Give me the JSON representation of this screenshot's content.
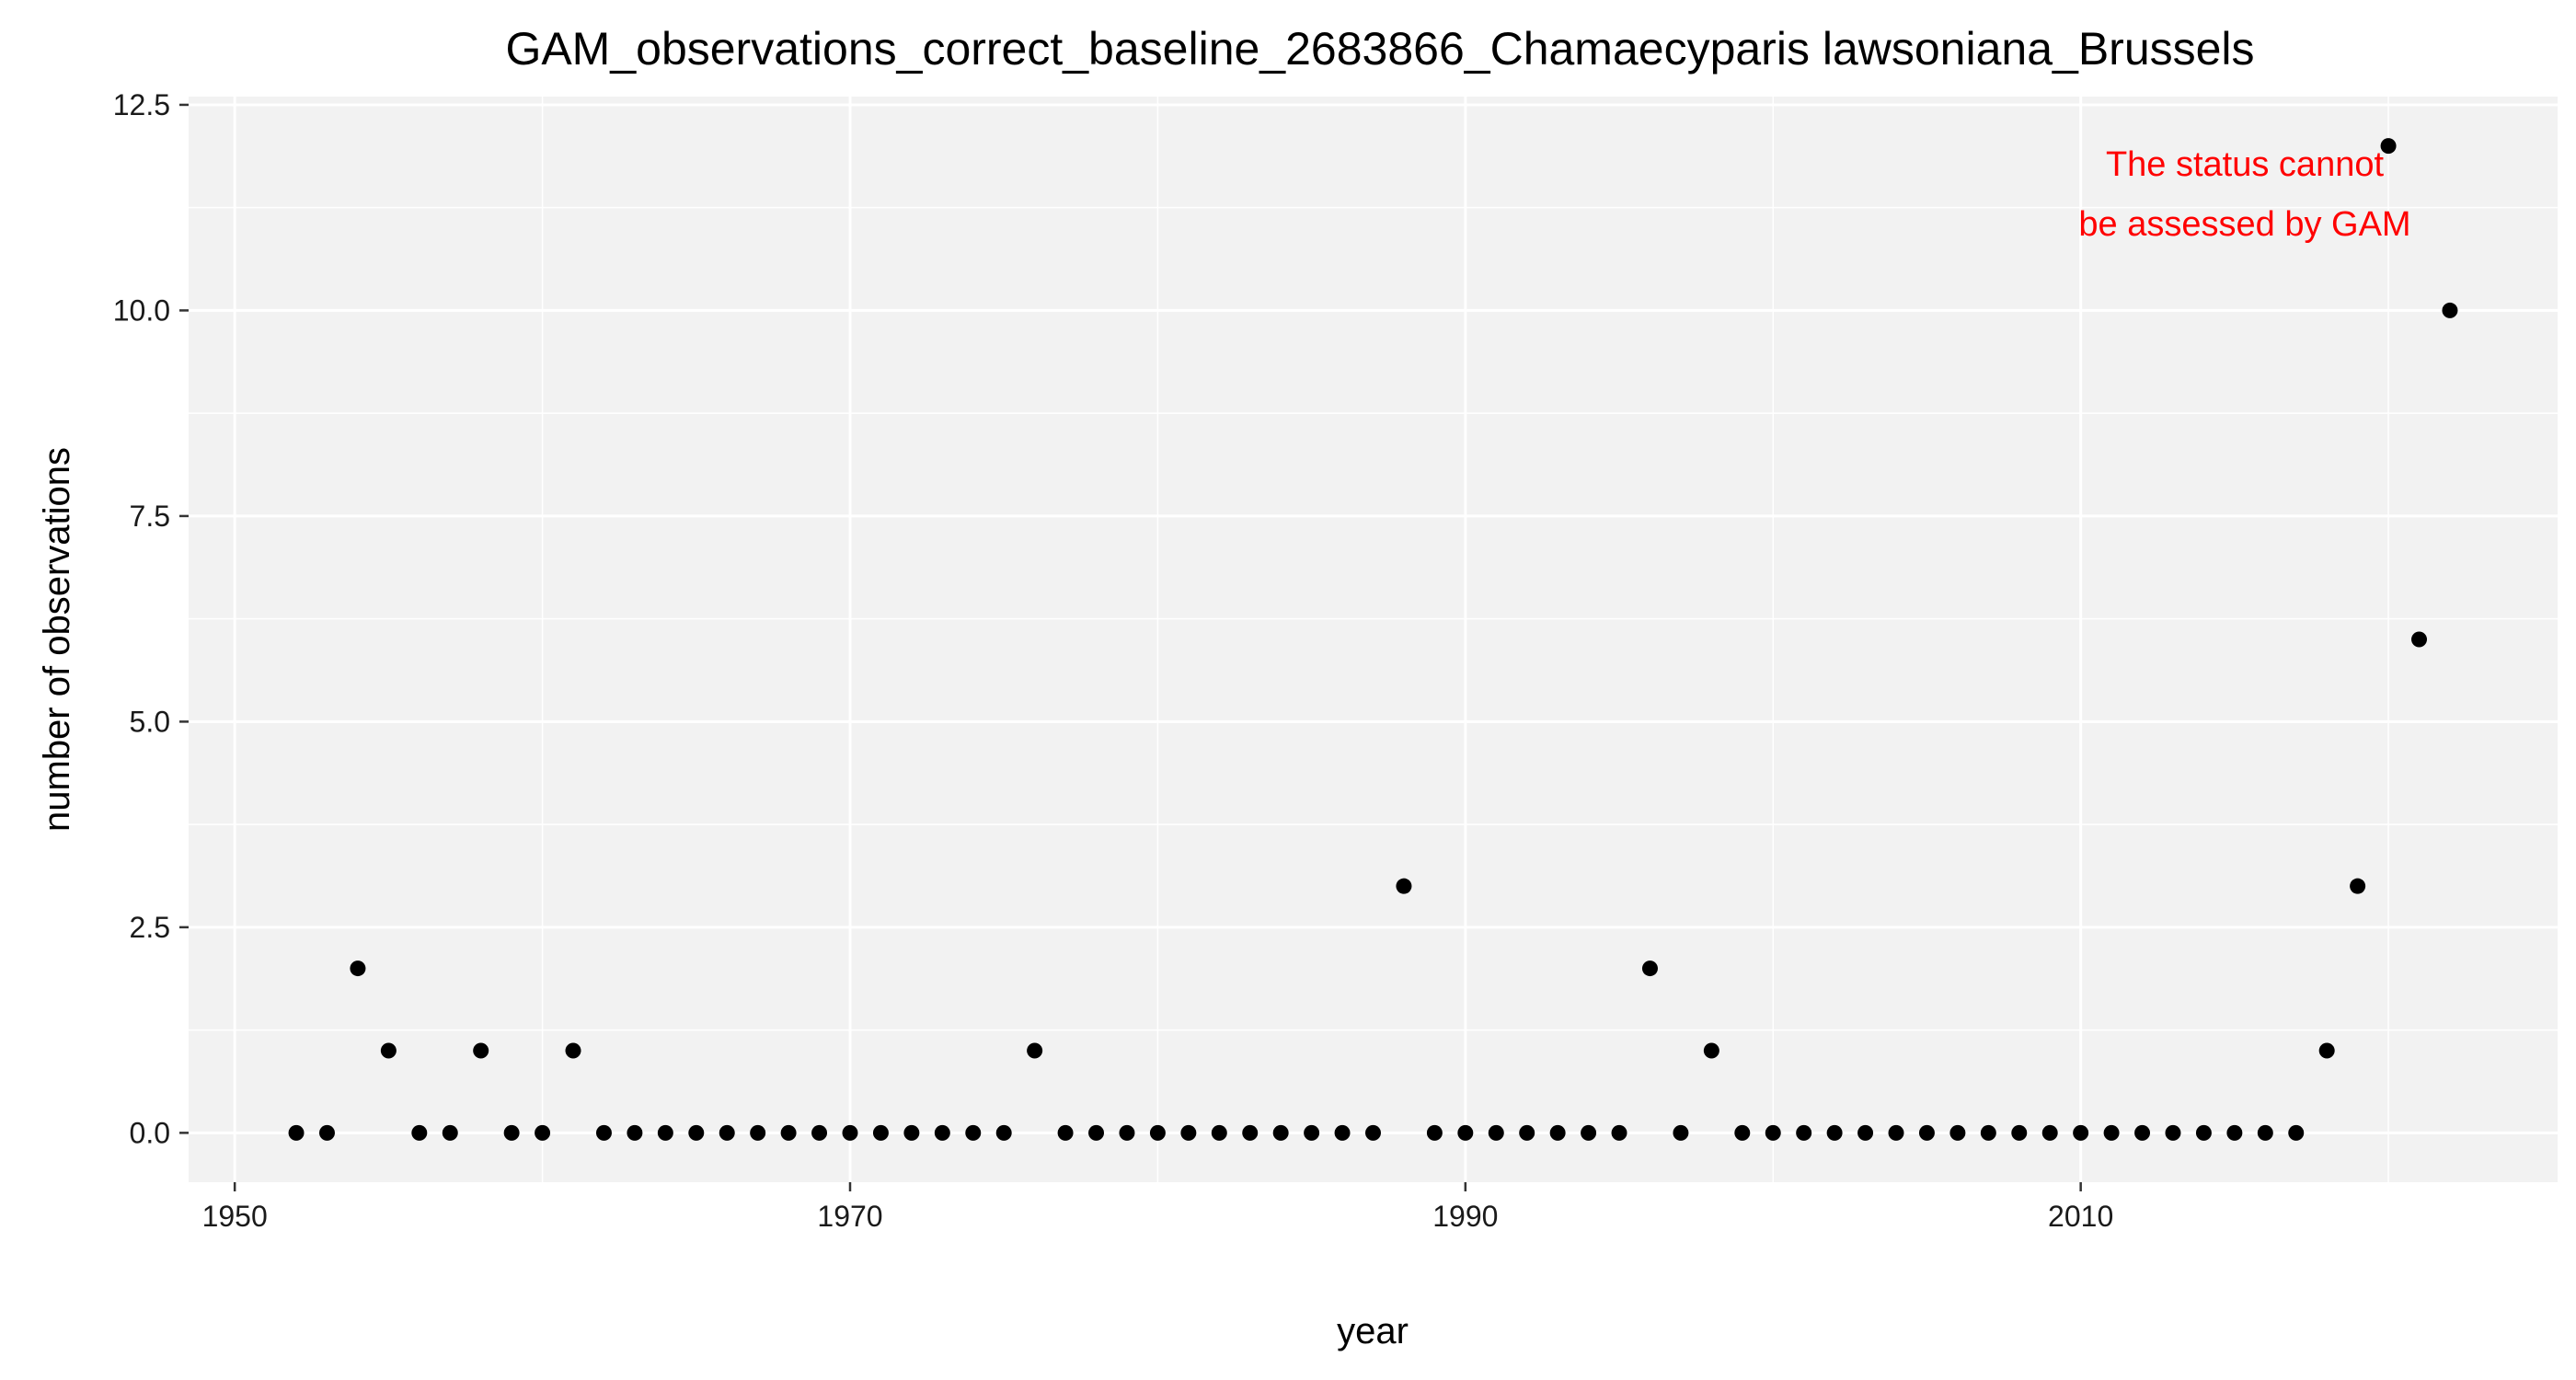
{
  "chart_data": {
    "type": "scatter",
    "title": "GAM_observations_correct_baseline_2683866_Chamaecyparis lawsoniana_Brussels",
    "xlabel": "year",
    "ylabel": "number of observations",
    "xlim": [
      1948.5,
      2025.5
    ],
    "ylim": [
      -0.6,
      12.6
    ],
    "x_ticks": [
      1950,
      1970,
      1990,
      2010
    ],
    "x_tick_labels": [
      "1950",
      "1970",
      "1990",
      "2010"
    ],
    "y_ticks": [
      0,
      2.5,
      5,
      7.5,
      10,
      12.5
    ],
    "y_tick_labels": [
      "0.0",
      "2.5",
      "5.0",
      "7.5",
      "10.0",
      "12.5"
    ],
    "annotation": [
      "The status cannot",
      "be assessed by GAM"
    ],
    "colors": {
      "panel": "#f2f2f2",
      "grid": "#ffffff",
      "point": "#000000",
      "annotation": "#ff0000",
      "text": "#000000",
      "tick_label": "#1a1a1a"
    },
    "series": [
      {
        "x": [
          1952,
          1953,
          1954,
          1955,
          1956,
          1957,
          1958,
          1959,
          1960,
          1961,
          1962,
          1963,
          1964,
          1965,
          1966,
          1967,
          1968,
          1969,
          1970,
          1971,
          1972,
          1973,
          1974,
          1975,
          1976,
          1977,
          1978,
          1979,
          1980,
          1981,
          1982,
          1983,
          1984,
          1985,
          1986,
          1987,
          1988,
          1989,
          1990,
          1991,
          1992,
          1993,
          1994,
          1995,
          1996,
          1997,
          1998,
          1999,
          2000,
          2001,
          2002,
          2003,
          2004,
          2005,
          2006,
          2007,
          2008,
          2009,
          2010,
          2011,
          2012,
          2013,
          2014,
          2015,
          2016,
          2017,
          2018,
          2019,
          2020,
          2021,
          2022
        ],
        "y": [
          0,
          0,
          2,
          1,
          0,
          0,
          1,
          0,
          0,
          1,
          0,
          0,
          0,
          0,
          0,
          0,
          0,
          0,
          0,
          0,
          0,
          0,
          0,
          0,
          1,
          0,
          0,
          0,
          0,
          0,
          0,
          0,
          0,
          0,
          0,
          0,
          3,
          0,
          0,
          0,
          0,
          0,
          0,
          0,
          2,
          0,
          1,
          0,
          0,
          0,
          0,
          0,
          0,
          0,
          0,
          0,
          0,
          0,
          0,
          0,
          0,
          0,
          0,
          0,
          0,
          0,
          1,
          3,
          12,
          6,
          10
        ]
      }
    ]
  }
}
